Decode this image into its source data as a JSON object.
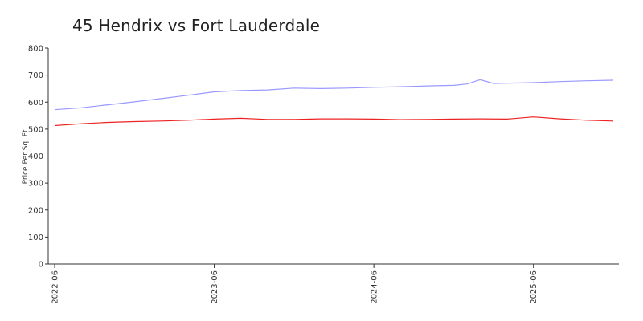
{
  "chart_data": {
    "type": "line",
    "title": "45 Hendrix vs Fort Lauderdale",
    "xlabel": "",
    "ylabel": "Price Per Sq. Ft.",
    "ylim": [
      0,
      800
    ],
    "yticks": [
      0,
      100,
      200,
      300,
      400,
      500,
      600,
      700,
      800
    ],
    "xticks": [
      "2022-06",
      "2023-06",
      "2024-06",
      "2025-06"
    ],
    "xrange": [
      "2022-06",
      "2025-12"
    ],
    "grid": false,
    "legend": "none",
    "series": [
      {
        "color": "#9999ff",
        "points": [
          [
            "2022-06",
            572
          ],
          [
            "2022-08",
            579
          ],
          [
            "2022-10",
            590
          ],
          [
            "2022-12",
            601
          ],
          [
            "2023-02",
            613
          ],
          [
            "2023-04",
            625
          ],
          [
            "2023-06",
            638
          ],
          [
            "2023-08",
            643
          ],
          [
            "2023-10",
            645
          ],
          [
            "2023-12",
            652
          ],
          [
            "2024-02",
            650
          ],
          [
            "2024-04",
            652
          ],
          [
            "2024-06",
            655
          ],
          [
            "2024-08",
            657
          ],
          [
            "2024-10",
            660
          ],
          [
            "2024-12",
            662
          ],
          [
            "2025-01",
            667
          ],
          [
            "2025-02",
            683
          ],
          [
            "2025-03",
            669
          ],
          [
            "2025-04",
            670
          ],
          [
            "2025-06",
            672
          ],
          [
            "2025-08",
            676
          ],
          [
            "2025-10",
            679
          ],
          [
            "2025-12",
            681
          ]
        ]
      },
      {
        "color": "#ee2222",
        "points": [
          [
            "2022-06",
            513
          ],
          [
            "2022-08",
            520
          ],
          [
            "2022-10",
            525
          ],
          [
            "2022-12",
            528
          ],
          [
            "2023-02",
            530
          ],
          [
            "2023-04",
            533
          ],
          [
            "2023-06",
            537
          ],
          [
            "2023-08",
            540
          ],
          [
            "2023-10",
            536
          ],
          [
            "2023-12",
            536
          ],
          [
            "2024-02",
            538
          ],
          [
            "2024-04",
            538
          ],
          [
            "2024-06",
            537
          ],
          [
            "2024-08",
            535
          ],
          [
            "2024-10",
            536
          ],
          [
            "2024-12",
            537
          ],
          [
            "2025-02",
            538
          ],
          [
            "2025-04",
            537
          ],
          [
            "2025-06",
            545
          ],
          [
            "2025-08",
            538
          ],
          [
            "2025-10",
            533
          ],
          [
            "2025-12",
            530
          ]
        ]
      }
    ]
  }
}
